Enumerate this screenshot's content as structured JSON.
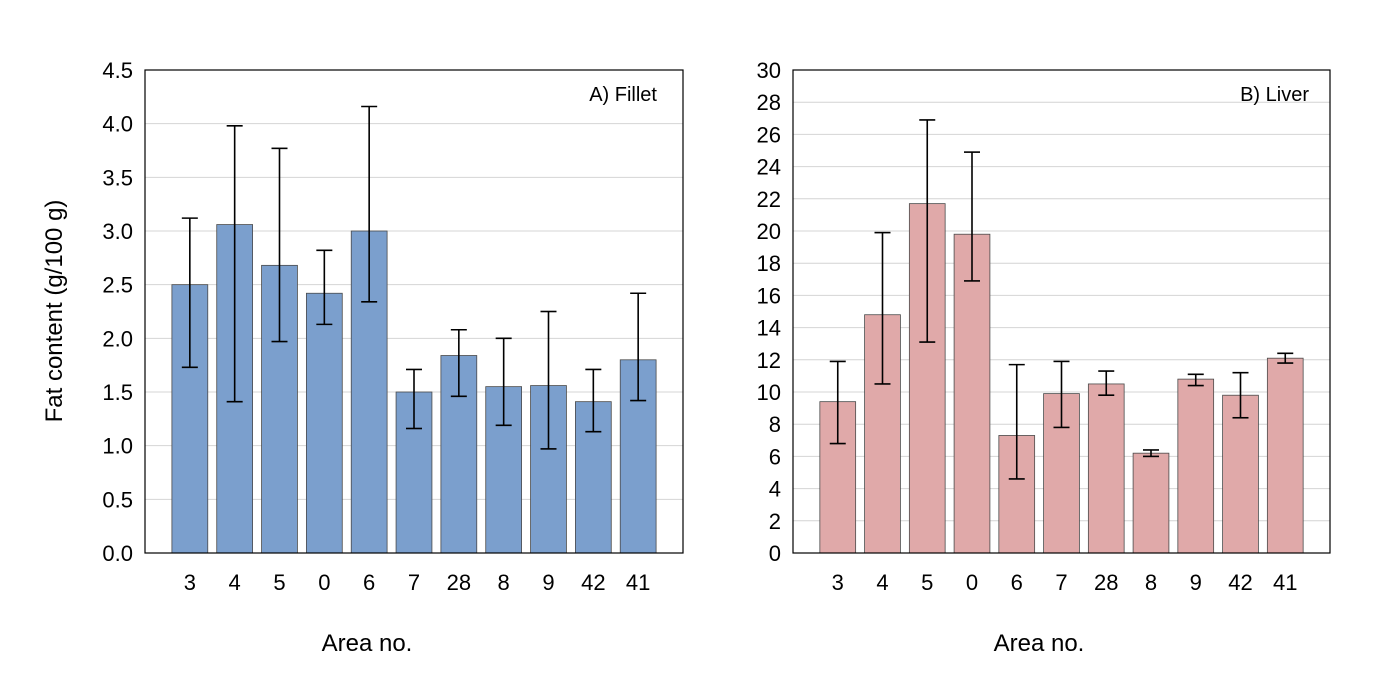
{
  "chart_data": [
    {
      "type": "bar",
      "panel_label": "A) Fillet",
      "xlabel": "Area no.",
      "ylabel": "Fat content (g/100 g)",
      "ylim": [
        0,
        4.5
      ],
      "ytick_step": 0.5,
      "ytick_decimals": 1,
      "grid": "horizontal",
      "bar_color": "#7b9fcd",
      "categories": [
        "3",
        "4",
        "5",
        "0",
        "6",
        "7",
        "28",
        "8",
        "9",
        "42",
        "41"
      ],
      "values": [
        2.5,
        3.06,
        2.68,
        2.42,
        3.0,
        1.5,
        1.84,
        1.55,
        1.56,
        1.41,
        1.8
      ],
      "error_low": [
        1.73,
        1.41,
        1.97,
        2.13,
        2.34,
        1.16,
        1.46,
        1.19,
        0.97,
        1.13,
        1.42
      ],
      "error_high": [
        3.12,
        3.98,
        3.77,
        2.82,
        4.16,
        1.71,
        2.08,
        2.0,
        2.25,
        1.71,
        2.42
      ]
    },
    {
      "type": "bar",
      "panel_label": "B) Liver",
      "xlabel": "Area no.",
      "ylabel": "",
      "ylim": [
        0,
        30
      ],
      "ytick_step": 2,
      "ytick_decimals": 0,
      "grid": "horizontal",
      "bar_color": "#e0a9a9",
      "categories": [
        "3",
        "4",
        "5",
        "0",
        "6",
        "7",
        "28",
        "8",
        "9",
        "42",
        "41"
      ],
      "values": [
        9.4,
        14.8,
        21.7,
        19.8,
        7.3,
        9.9,
        10.5,
        6.2,
        10.8,
        9.8,
        12.1
      ],
      "error_low": [
        6.8,
        10.5,
        13.1,
        16.9,
        4.6,
        7.8,
        9.8,
        6.0,
        10.4,
        8.4,
        11.8
      ],
      "error_high": [
        11.9,
        19.9,
        26.9,
        24.9,
        11.7,
        11.9,
        11.3,
        6.4,
        11.1,
        11.2,
        12.4
      ]
    }
  ]
}
